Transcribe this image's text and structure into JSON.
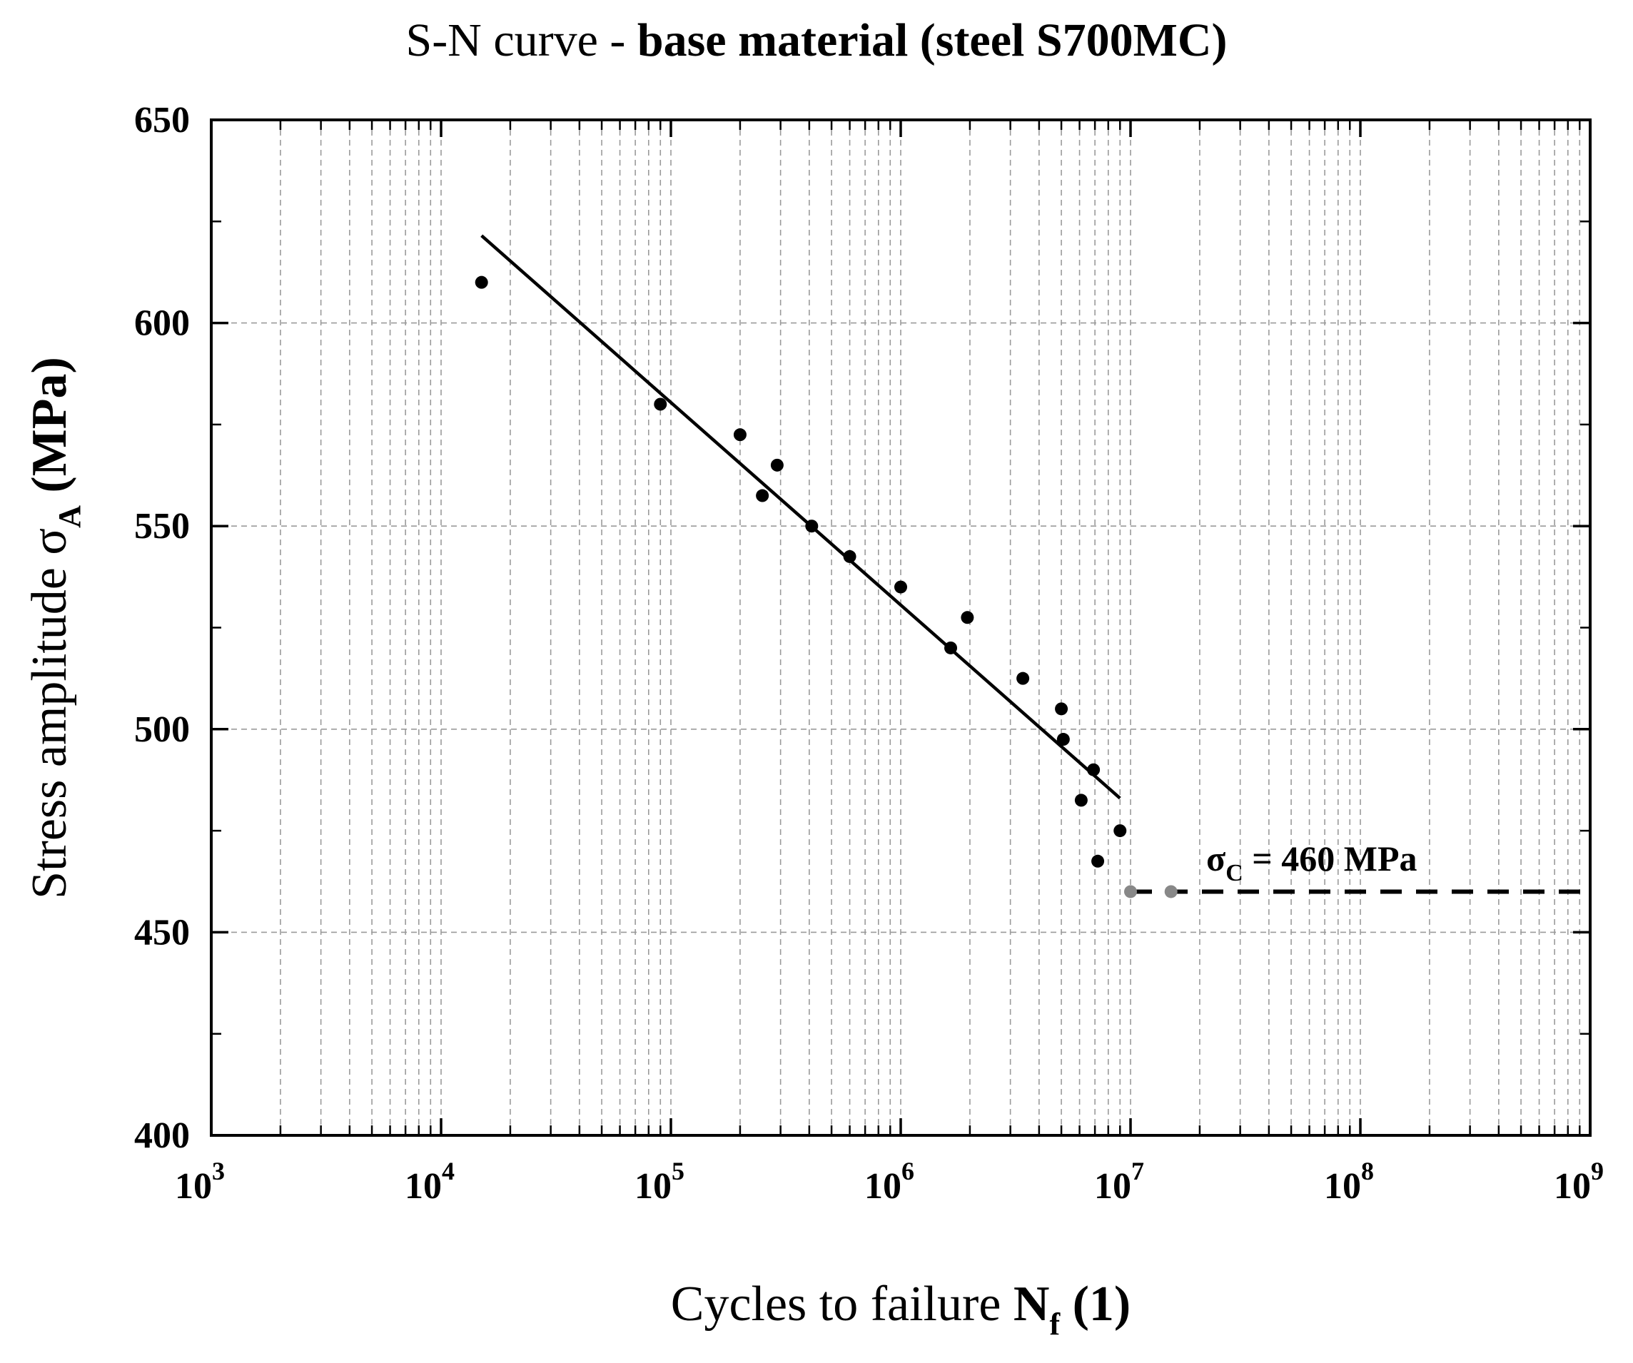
{
  "chart_data": {
    "type": "scatter",
    "title": {
      "normal": "S-N curve - ",
      "bold": "base material (steel S700MC)"
    },
    "xlabel": {
      "normal": "Cycles to failure ",
      "symbol": "N",
      "subscript": "f",
      "unit": " (1)"
    },
    "ylabel": {
      "normal": "Stress amplitude σ",
      "subscript": "A",
      "unit": " (MPa)"
    },
    "x_scale": "log",
    "xlim": [
      1000,
      1000000000
    ],
    "ylim": [
      400,
      650
    ],
    "grid": true,
    "x_ticks": [
      {
        "base": "10",
        "exp": "3"
      },
      {
        "base": "10",
        "exp": "4"
      },
      {
        "base": "10",
        "exp": "5"
      },
      {
        "base": "10",
        "exp": "6"
      },
      {
        "base": "10",
        "exp": "7"
      },
      {
        "base": "10",
        "exp": "8"
      },
      {
        "base": "10",
        "exp": "9"
      }
    ],
    "y_ticks": [
      "400",
      "450",
      "500",
      "550",
      "600",
      "650"
    ],
    "series": [
      {
        "name": "test points",
        "color": "#000000",
        "points": [
          {
            "x": 15000,
            "y": 610
          },
          {
            "x": 90000,
            "y": 580
          },
          {
            "x": 200000,
            "y": 572.5
          },
          {
            "x": 250000,
            "y": 557.5
          },
          {
            "x": 290000,
            "y": 565
          },
          {
            "x": 410000,
            "y": 550
          },
          {
            "x": 600000,
            "y": 542.5
          },
          {
            "x": 1000000,
            "y": 535
          },
          {
            "x": 1650000,
            "y": 520
          },
          {
            "x": 1950000,
            "y": 527.5
          },
          {
            "x": 3400000,
            "y": 512.5
          },
          {
            "x": 5000000,
            "y": 505
          },
          {
            "x": 5100000,
            "y": 497.5
          },
          {
            "x": 6100000,
            "y": 482.5
          },
          {
            "x": 6900000,
            "y": 490
          },
          {
            "x": 7200000,
            "y": 467.5
          },
          {
            "x": 9000000,
            "y": 475
          }
        ]
      },
      {
        "name": "run-outs",
        "color": "#888888",
        "points": [
          {
            "x": 10000000,
            "y": 460
          },
          {
            "x": 15000000,
            "y": 460
          }
        ]
      }
    ],
    "fit_line": {
      "color": "#000000",
      "points": [
        {
          "x": 15000,
          "y": 621.5
        },
        {
          "x": 9000000,
          "y": 483
        }
      ]
    },
    "fatigue_limit": {
      "value": 460,
      "x_start": 10000000,
      "x_end": 1000000000,
      "label": {
        "symbol": "σ",
        "subscript": "C",
        "text": " = 460 MPa"
      }
    }
  }
}
